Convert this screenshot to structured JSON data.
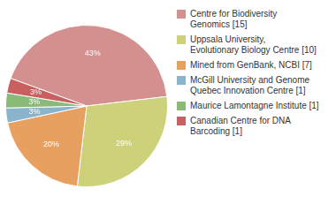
{
  "chart_data": {
    "type": "pie",
    "categories": [
      "Centre for Biodiversity\nGenomics [15]",
      "Uppsala University,\nEvolutionary Biology Centre [10]",
      "Mined from GenBank, NCBI [7]",
      "McGill University and Genome\nQuebec Innovation Centre [1]",
      "Maurice Lamontagne Institute [1]",
      "Canadian Centre for DNA\nBarcoding [1]"
    ],
    "values": [
      43,
      29,
      20,
      3,
      3,
      3
    ],
    "value_labels": [
      "43%",
      "29%",
      "20%",
      "3%",
      "3%",
      "3%"
    ],
    "colors": [
      "#d4908e",
      "#cdd17a",
      "#e8a060",
      "#8ab4cc",
      "#8aba78",
      "#c86060"
    ],
    "data_labels": true,
    "legend": "right"
  }
}
